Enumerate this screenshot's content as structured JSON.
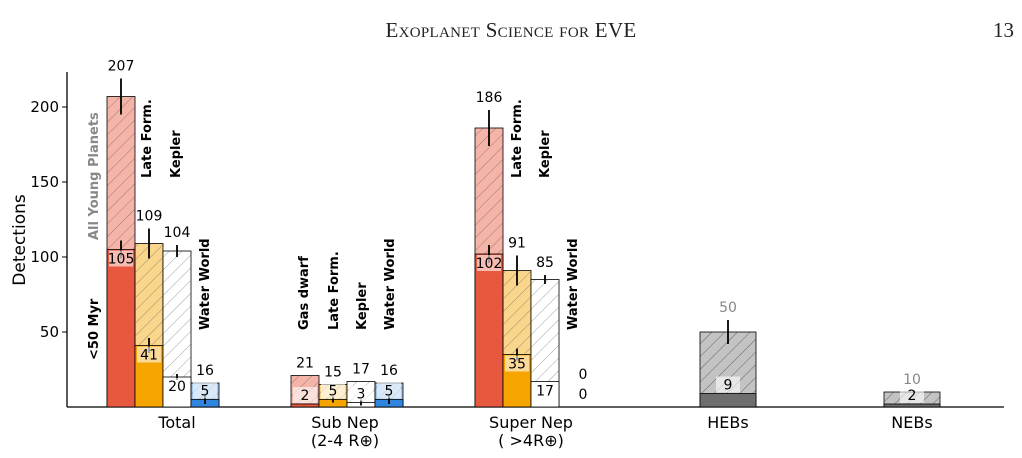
{
  "header": {
    "title": "Exoplanet Science for EVE",
    "page_number": "13"
  },
  "chart_data": {
    "type": "bar",
    "ylabel": "Detections",
    "ylim": [
      0,
      220
    ],
    "yticks": [
      50,
      100,
      150,
      200
    ],
    "groups": [
      {
        "label": "Total",
        "bars": [
          {
            "name": "All Young Planets",
            "total": 207,
            "total_label": "207",
            "inner": 105,
            "inner_label": "105",
            "total_err": 12,
            "inner_err": 6,
            "face": "#e8583f",
            "hatch": true,
            "inner_text_dark": false,
            "label_rot": "<50 Myr",
            "label_rot_inner": true
          },
          {
            "name": "Late Form.",
            "total": 109,
            "total_label": "109",
            "inner": 41,
            "inner_label": "41",
            "total_err": 10,
            "inner_err": 5,
            "face": "#f5a400",
            "hatch": true
          },
          {
            "name": "Kepler",
            "total": 104,
            "total_label": "104",
            "inner": 20,
            "inner_label": "20",
            "total_err": 4,
            "inner_err": 2,
            "face": "#ffffff",
            "hatch": true
          },
          {
            "name": "Water World",
            "total": 16,
            "total_label": "16",
            "inner": 5,
            "inner_label": "5",
            "total_err": 0,
            "inner_err": 3,
            "face": "#2e86de",
            "hatch": true
          }
        ]
      },
      {
        "label": "Sub Nep\n(2-4 R⊕)",
        "label_line1": "Sub Nep",
        "label_line2": "(2-4 R⊕)",
        "bars": [
          {
            "name": "Gas dwarf",
            "total": 21,
            "total_label": "21",
            "inner": 2,
            "inner_label": "2",
            "total_err": 0,
            "inner_err": 0,
            "face": "#e8583f",
            "hatch": true
          },
          {
            "name": "Late Form.",
            "total": 15,
            "total_label": "15",
            "inner": 5,
            "inner_label": "5",
            "total_err": 0,
            "inner_err": 2,
            "face": "#f5a400",
            "hatch": true
          },
          {
            "name": "Kepler",
            "total": 17,
            "total_label": "17",
            "inner": 3,
            "inner_label": "3",
            "total_err": 0,
            "inner_err": 2,
            "face": "#ffffff",
            "hatch": true
          },
          {
            "name": "Water World",
            "total": 16,
            "total_label": "16",
            "inner": 5,
            "inner_label": "5",
            "total_err": 0,
            "inner_err": 3,
            "face": "#2e86de",
            "hatch": true
          }
        ]
      },
      {
        "label": "Super Nep\n(>4R⊕)",
        "label_line1": "Super Nep",
        "label_line2": "( >4R⊕)",
        "bars": [
          {
            "name": "",
            "total": 186,
            "total_label": "186",
            "inner": 102,
            "inner_label": "102",
            "total_err": 12,
            "inner_err": 6,
            "face": "#e8583f",
            "hatch": true
          },
          {
            "name": "Late Form.",
            "total": 91,
            "total_label": "91",
            "inner": 35,
            "inner_label": "35",
            "total_err": 10,
            "inner_err": 4,
            "face": "#f5a400",
            "hatch": true
          },
          {
            "name": "Kepler",
            "total": 85,
            "total_label": "85",
            "inner": 17,
            "inner_label": "17",
            "total_err": 3,
            "inner_err": 0,
            "face": "#ffffff",
            "hatch": true
          },
          {
            "name": "Water World",
            "total": 0,
            "total_label": "0",
            "inner": 0,
            "inner_label": "0",
            "total_err": 0,
            "inner_err": 0,
            "face": "#2e86de",
            "hatch": true
          }
        ]
      },
      {
        "label": "HEBs",
        "bars": [
          {
            "name": "",
            "total": 50,
            "total_label": "50",
            "inner": 9,
            "inner_label": "9",
            "total_err": 8,
            "inner_err": 0,
            "face": "#6e6e6e",
            "hatch": true,
            "gray": true
          }
        ]
      },
      {
        "label": "NEBs",
        "bars": [
          {
            "name": "",
            "total": 10,
            "total_label": "10",
            "inner": 2,
            "inner_label": "2",
            "total_err": 0,
            "inner_err": 0,
            "face": "#6e6e6e",
            "hatch": true,
            "gray": true
          }
        ]
      }
    ],
    "rotated_labels": {
      "all_young": "All Young Planets",
      "late_form": "Late Form.",
      "kepler": "Kepler",
      "water_world": "Water World",
      "lt50": "<50 Myr",
      "gas_dwarf": "Gas dwarf"
    },
    "colors": {
      "red": "#e8583f",
      "orange": "#f5a400",
      "blue": "#2e86de",
      "gray_dark": "#6e6e6e",
      "gray_light": "#bdbdbd",
      "gray_label": "#888888"
    }
  }
}
